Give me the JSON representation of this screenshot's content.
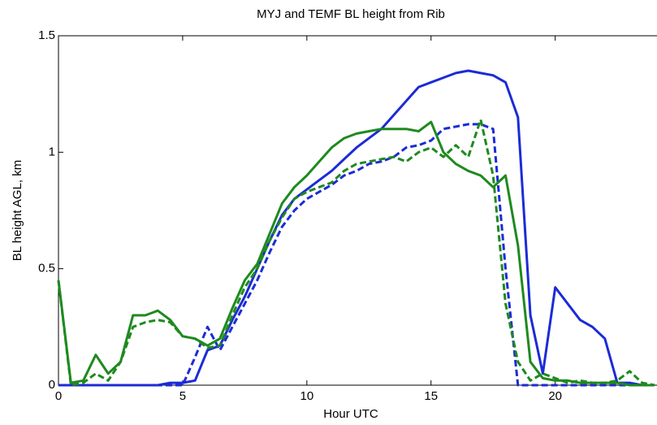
{
  "chart_data": {
    "type": "line",
    "title": "MYJ and TEMF BL height from Rib",
    "xlabel": "Hour UTC",
    "ylabel": "BL height AGL, km",
    "xlim": [
      0,
      24
    ],
    "xticks": [
      0,
      5,
      10,
      15,
      20
    ],
    "ylim": [
      0,
      1.5
    ],
    "yticks": [
      0,
      0.5,
      1,
      1.5
    ],
    "x": [
      0,
      0.5,
      1,
      1.5,
      2,
      2.5,
      3,
      3.5,
      4,
      4.5,
      5,
      5.5,
      6,
      6.5,
      7,
      7.5,
      8,
      8.5,
      9,
      9.5,
      10,
      10.5,
      11,
      11.5,
      12,
      12.5,
      13,
      13.5,
      14,
      14.5,
      15,
      15.5,
      16,
      16.5,
      17,
      17.5,
      18,
      18.5,
      19,
      19.5,
      20,
      20.5,
      21,
      21.5,
      22,
      22.5,
      23,
      23.5,
      24
    ],
    "series": [
      {
        "color": "#1c2bd6",
        "style": "solid",
        "values": [
          0,
          0,
          0,
          0,
          0,
          0,
          0,
          0,
          0,
          0.01,
          0.01,
          0.02,
          0.15,
          0.17,
          0.28,
          0.38,
          0.5,
          0.62,
          0.73,
          0.8,
          0.84,
          0.88,
          0.92,
          0.97,
          1.02,
          1.06,
          1.1,
          1.16,
          1.22,
          1.28,
          1.3,
          1.32,
          1.34,
          1.35,
          1.34,
          1.33,
          1.3,
          1.15,
          0.3,
          0.05,
          0.42,
          0.35,
          0.28,
          0.25,
          0.2,
          0.01,
          0.01,
          0,
          0
        ]
      },
      {
        "color": "#1c2bd6",
        "style": "dashed",
        "values": [
          0,
          0,
          0,
          0,
          0,
          0,
          0,
          0,
          0,
          0,
          0,
          0.12,
          0.25,
          0.15,
          0.25,
          0.35,
          0.45,
          0.57,
          0.68,
          0.75,
          0.8,
          0.83,
          0.86,
          0.9,
          0.92,
          0.95,
          0.96,
          0.98,
          1.02,
          1.03,
          1.05,
          1.1,
          1.11,
          1.12,
          1.12,
          1.1,
          0.5,
          0,
          0,
          0,
          0,
          0,
          0,
          0,
          0,
          0,
          0,
          0,
          0
        ]
      },
      {
        "color": "#1e8a1e",
        "style": "solid",
        "values": [
          0.45,
          0.01,
          0.02,
          0.13,
          0.05,
          0.1,
          0.3,
          0.3,
          0.32,
          0.28,
          0.21,
          0.2,
          0.17,
          0.2,
          0.33,
          0.45,
          0.52,
          0.65,
          0.78,
          0.85,
          0.9,
          0.96,
          1.02,
          1.06,
          1.08,
          1.09,
          1.1,
          1.1,
          1.1,
          1.09,
          1.13,
          1.0,
          0.95,
          0.92,
          0.9,
          0.85,
          0.9,
          0.6,
          0.1,
          0.03,
          0.02,
          0.02,
          0.01,
          0.01,
          0.01,
          0.01,
          0,
          0,
          0
        ]
      },
      {
        "color": "#1e8a1e",
        "style": "dashed",
        "values": [
          0.45,
          0,
          0.01,
          0.05,
          0.02,
          0.1,
          0.25,
          0.27,
          0.28,
          0.27,
          0.21,
          0.2,
          0.16,
          0.17,
          0.3,
          0.42,
          0.5,
          0.62,
          0.72,
          0.8,
          0.83,
          0.85,
          0.87,
          0.92,
          0.95,
          0.96,
          0.97,
          0.98,
          0.96,
          1.0,
          1.02,
          0.98,
          1.03,
          0.98,
          1.14,
          0.9,
          0.35,
          0.1,
          0.02,
          0.05,
          0.03,
          0.01,
          0.02,
          0.01,
          0.01,
          0.02,
          0.06,
          0.01,
          0
        ]
      }
    ]
  }
}
